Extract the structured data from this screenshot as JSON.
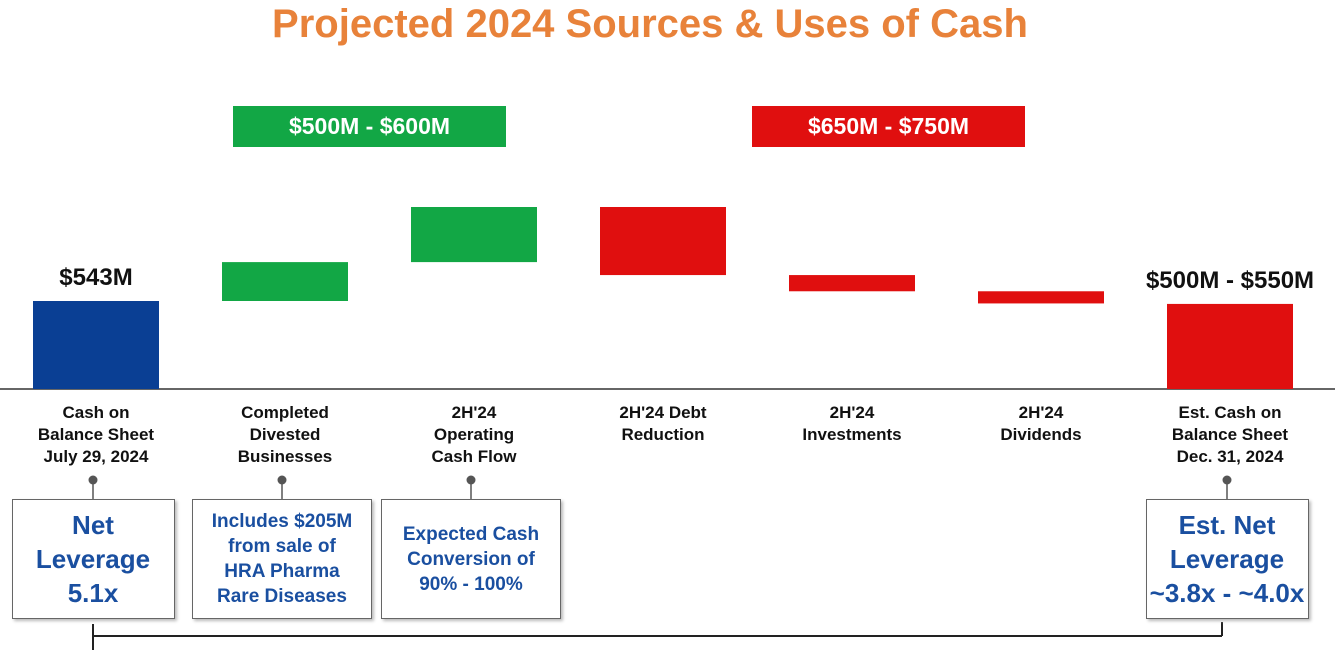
{
  "chart_data": {
    "type": "waterfall",
    "title": "Projected 2024 Sources & Uses of Cash",
    "categories": [
      "Cash on\nBalance Sheet\nJuly 29, 2024",
      "Completed\nDivested\nBusinesses",
      "2H'24\nOperating\nCash Flow",
      "2H'24 Debt\nReduction",
      "2H'24\nInvestments",
      "2H'24\nDividends",
      "Est. Cash on\nBalance Sheet\nDec. 31, 2024"
    ],
    "measure": [
      "total",
      "relative",
      "relative",
      "relative",
      "relative",
      "relative",
      "total"
    ],
    "values": [
      543,
      240,
      340,
      -420,
      -100,
      -75,
      525
    ],
    "value_labels": [
      "$543M",
      null,
      null,
      null,
      null,
      null,
      "$500M - $550M"
    ],
    "colors": {
      "total": "#0a3f94",
      "increase": "#12a745",
      "decrease": "#e00f0f"
    },
    "ranges": [
      {
        "label": "$500M - $600M",
        "color": "#12a745"
      },
      {
        "label": "$650M - $750M",
        "color": "#e00f0f"
      }
    ],
    "callouts": [
      "Net\nLeverage\n5.1x",
      "Includes $205M\nfrom sale of\nHRA Pharma\nRare Diseases",
      "Expected Cash\nConversion of\n90% - 100%",
      null,
      null,
      null,
      "Est. Net\nLeverage\n~3.8x - ~4.0x"
    ]
  }
}
